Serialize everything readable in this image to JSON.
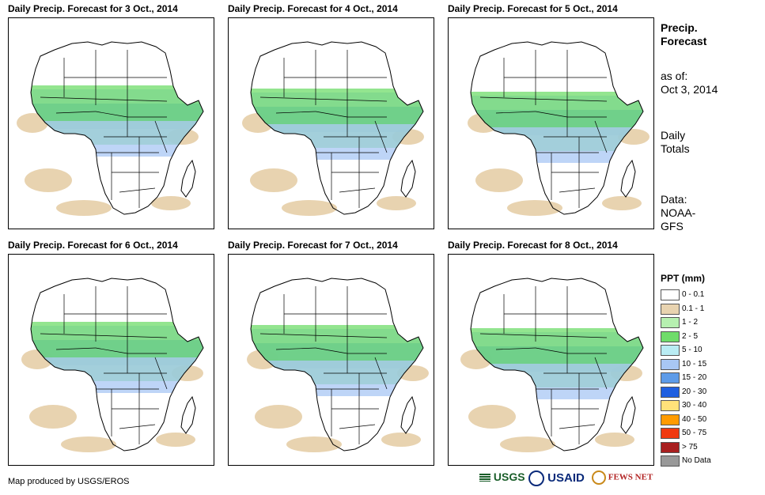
{
  "panels": [
    {
      "title": "Daily Precip. Forecast for 3 Oct., 2014"
    },
    {
      "title": "Daily Precip. Forecast for 4 Oct., 2014"
    },
    {
      "title": "Daily Precip. Forecast for 5 Oct., 2014"
    },
    {
      "title": "Daily Precip. Forecast for 6 Oct., 2014"
    },
    {
      "title": "Daily Precip. Forecast for 7 Oct., 2014"
    },
    {
      "title": "Daily Precip. Forecast for 8 Oct., 2014"
    }
  ],
  "sidebar": {
    "heading_line1": "Precip.",
    "heading_line2": "Forecast",
    "asof_line1": "as of:",
    "asof_line2": "Oct 3, 2014",
    "totals_line1": "Daily",
    "totals_line2": "Totals",
    "data_line1": "Data:",
    "data_line2": "NOAA-",
    "data_line3": "GFS"
  },
  "legend": {
    "title": "PPT (mm)",
    "items": [
      {
        "label": "0 - 0.1",
        "color": "#ffffff"
      },
      {
        "label": "0.1 - 1",
        "color": "#e8d3b0"
      },
      {
        "label": "1 - 2",
        "color": "#b6f0b0"
      },
      {
        "label": "2 - 5",
        "color": "#6fdc6a"
      },
      {
        "label": "5 - 10",
        "color": "#b9ecf3"
      },
      {
        "label": "10 - 15",
        "color": "#a8c7f4"
      },
      {
        "label": "15 - 20",
        "color": "#5d9be8"
      },
      {
        "label": "20 - 30",
        "color": "#1f5fe0"
      },
      {
        "label": "30 - 40",
        "color": "#ffe27a"
      },
      {
        "label": "40 - 50",
        "color": "#ff9b00"
      },
      {
        "label": "50 - 75",
        "color": "#f03a10"
      },
      {
        "label": "> 75",
        "color": "#a81f1f"
      },
      {
        "label": "No Data",
        "color": "#999999"
      }
    ]
  },
  "footer": {
    "credit": "Map produced by USGS/EROS"
  },
  "logos": {
    "usgs": "USGS",
    "usaid": "USAID",
    "fewsnet": "FEWS NET"
  }
}
